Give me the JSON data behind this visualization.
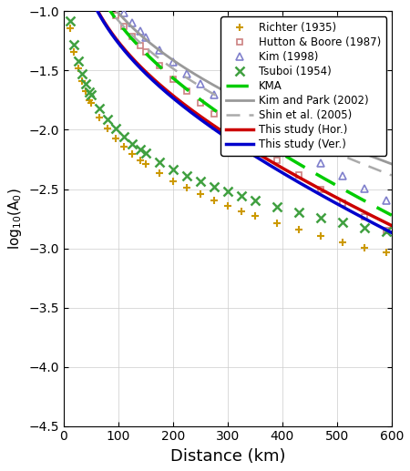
{
  "xlabel": "Distance (km)",
  "ylabel": "log$_{10}$(A$_0$)",
  "xlim": [
    0,
    600
  ],
  "ylim": [
    -4.5,
    -1.0
  ],
  "yticks": [
    -4.5,
    -4.0,
    -3.5,
    -3.0,
    -2.5,
    -2.0,
    -1.5,
    -1.0
  ],
  "xticks": [
    0,
    100,
    200,
    300,
    400,
    500,
    600
  ],
  "figsize": [
    4.5,
    5.17
  ],
  "dpi": 100,
  "richter_color": "#CC9900",
  "hutton_color": "#CC8080",
  "kim98_color": "#8080CC",
  "tsuboi_color": "#40A040",
  "kma_color": "#00CC00",
  "kimpark_color": "#999999",
  "shin_color": "#AAAAAA",
  "hor_color": "#CC0000",
  "ver_color": "#0000CC",
  "background_color": "#FFFFFF",
  "grid_color": "#CCCCCC"
}
